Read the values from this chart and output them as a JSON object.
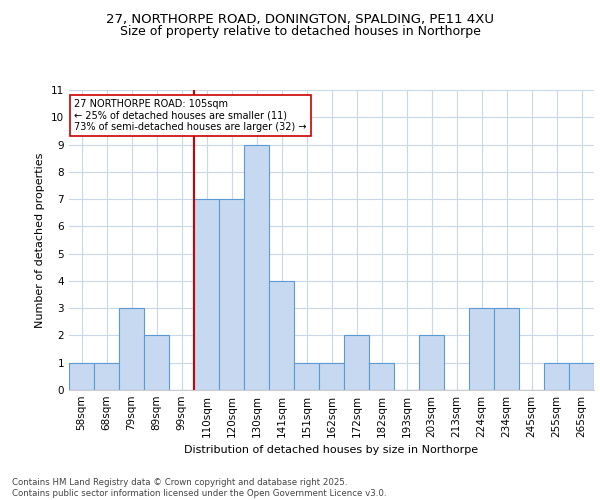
{
  "title_line1": "27, NORTHORPE ROAD, DONINGTON, SPALDING, PE11 4XU",
  "title_line2": "Size of property relative to detached houses in Northorpe",
  "xlabel": "Distribution of detached houses by size in Northorpe",
  "ylabel": "Number of detached properties",
  "bin_labels": [
    "58sqm",
    "68sqm",
    "79sqm",
    "89sqm",
    "99sqm",
    "110sqm",
    "120sqm",
    "130sqm",
    "141sqm",
    "151sqm",
    "162sqm",
    "172sqm",
    "182sqm",
    "193sqm",
    "203sqm",
    "213sqm",
    "224sqm",
    "234sqm",
    "245sqm",
    "255sqm",
    "265sqm"
  ],
  "bar_heights": [
    1,
    1,
    3,
    2,
    0,
    7,
    7,
    9,
    4,
    1,
    1,
    2,
    1,
    0,
    2,
    0,
    3,
    3,
    0,
    1,
    1
  ],
  "bar_color": "#c7d9f0",
  "bar_edge_color": "#5b9bd5",
  "vline_x": 4.5,
  "vline_color": "#cc0000",
  "annotation_text": "27 NORTHORPE ROAD: 105sqm\n← 25% of detached houses are smaller (11)\n73% of semi-detached houses are larger (32) →",
  "annotation_box_color": "#ffffff",
  "annotation_box_edge": "#cc0000",
  "ylim": [
    0,
    11
  ],
  "yticks": [
    0,
    1,
    2,
    3,
    4,
    5,
    6,
    7,
    8,
    9,
    10,
    11
  ],
  "background_color": "#ffffff",
  "grid_color": "#c8d8e8",
  "footer_text": "Contains HM Land Registry data © Crown copyright and database right 2025.\nContains public sector information licensed under the Open Government Licence v3.0.",
  "title_fontsize": 9.5,
  "subtitle_fontsize": 9.0,
  "axis_label_fontsize": 8.0,
  "tick_fontsize": 7.5,
  "footer_fontsize": 6.2,
  "annotation_fontsize": 7.0
}
